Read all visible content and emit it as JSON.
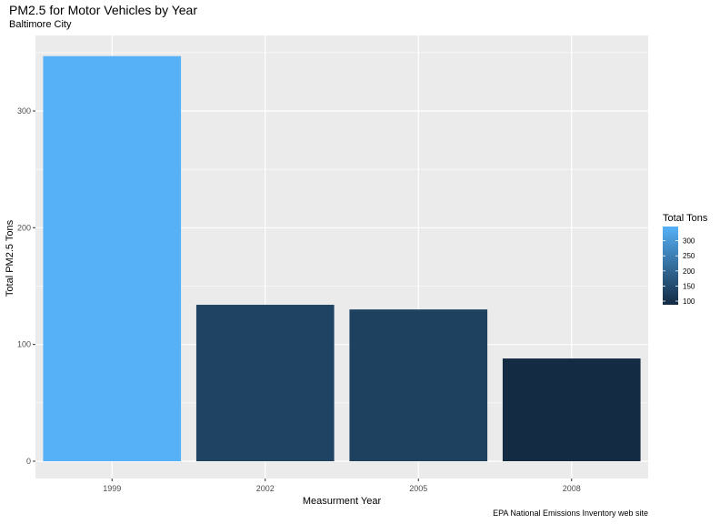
{
  "chart_data": {
    "type": "bar",
    "title": "PM2.5 for Motor Vehicles by Year",
    "subtitle": "Baltimore City",
    "caption": "EPA National Emissions Inventory web site",
    "xlabel": "Measurment Year",
    "ylabel": "Total PM2.5 Tons",
    "categories": [
      "1999",
      "2002",
      "2005",
      "2008"
    ],
    "values": [
      347,
      134,
      130,
      88
    ],
    "ylim": [
      0,
      361
    ],
    "yticks": [
      0,
      100,
      200,
      300
    ],
    "grid": true,
    "legend": {
      "title": "Total Tons",
      "placement": "right",
      "ticks": [
        100,
        150,
        200,
        250,
        300
      ],
      "range": [
        88,
        347
      ],
      "color_low": "#132B43",
      "color_high": "#56B1F7"
    }
  }
}
